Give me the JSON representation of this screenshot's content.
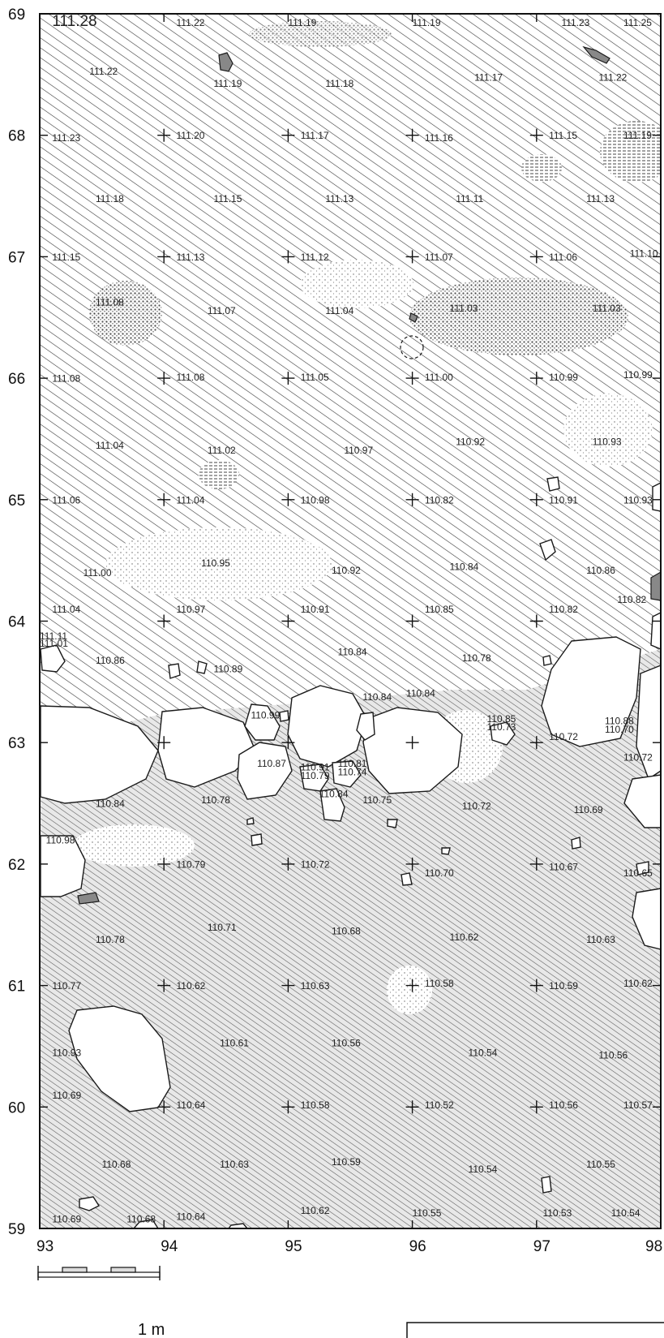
{
  "plan": {
    "x_axis": {
      "min": 93,
      "max": 98,
      "ticks": [
        "93",
        "94",
        "95",
        "96",
        "97",
        "98"
      ]
    },
    "y_axis": {
      "min": 59,
      "max": 69,
      "ticks": [
        "59",
        "60",
        "61",
        "62",
        "63",
        "64",
        "65",
        "66",
        "67",
        "68",
        "69"
      ]
    },
    "scale_bar_label": "1 m",
    "ink_color": "#1a1a1a",
    "fill_color": "#ffffff"
  },
  "elevations": [
    {
      "x": 93.1,
      "y": 68.9,
      "t": "111.28",
      "big": true
    },
    {
      "x": 94.1,
      "y": 68.9,
      "t": "111.22"
    },
    {
      "x": 95.0,
      "y": 68.9,
      "t": "111.19"
    },
    {
      "x": 96.0,
      "y": 68.9,
      "t": "111.19"
    },
    {
      "x": 97.2,
      "y": 68.9,
      "t": "111.23"
    },
    {
      "x": 97.7,
      "y": 68.9,
      "t": "111.25"
    },
    {
      "x": 93.4,
      "y": 68.5,
      "t": "111.22"
    },
    {
      "x": 94.4,
      "y": 68.4,
      "t": "111.19"
    },
    {
      "x": 95.3,
      "y": 68.4,
      "t": "111.18"
    },
    {
      "x": 96.5,
      "y": 68.45,
      "t": "111.17"
    },
    {
      "x": 97.5,
      "y": 68.45,
      "t": "111.22"
    },
    {
      "x": 93.1,
      "y": 67.95,
      "t": "111.23"
    },
    {
      "x": 94.1,
      "y": 67.97,
      "t": "111.20"
    },
    {
      "x": 95.1,
      "y": 67.97,
      "t": "111.17"
    },
    {
      "x": 96.1,
      "y": 67.95,
      "t": "111.16"
    },
    {
      "x": 97.1,
      "y": 67.97,
      "t": "111.15"
    },
    {
      "x": 97.7,
      "y": 67.97,
      "t": "111.19"
    },
    {
      "x": 93.45,
      "y": 67.45,
      "t": "111.18"
    },
    {
      "x": 94.4,
      "y": 67.45,
      "t": "111.15"
    },
    {
      "x": 95.3,
      "y": 67.45,
      "t": "111.13"
    },
    {
      "x": 96.35,
      "y": 67.45,
      "t": "111.11"
    },
    {
      "x": 97.4,
      "y": 67.45,
      "t": "111.13"
    },
    {
      "x": 93.1,
      "y": 66.97,
      "t": "111.15"
    },
    {
      "x": 94.1,
      "y": 66.97,
      "t": "111.13"
    },
    {
      "x": 95.1,
      "y": 66.97,
      "t": "111.12"
    },
    {
      "x": 96.1,
      "y": 66.97,
      "t": "111.07"
    },
    {
      "x": 97.1,
      "y": 66.97,
      "t": "111.06"
    },
    {
      "x": 97.75,
      "y": 67.0,
      "t": "111.10"
    },
    {
      "x": 93.45,
      "y": 66.6,
      "t": "111.08"
    },
    {
      "x": 94.35,
      "y": 66.53,
      "t": "111.07"
    },
    {
      "x": 95.3,
      "y": 66.53,
      "t": "111.04"
    },
    {
      "x": 96.3,
      "y": 66.55,
      "t": "111.03"
    },
    {
      "x": 97.45,
      "y": 66.55,
      "t": "111.03"
    },
    {
      "x": 93.1,
      "y": 65.97,
      "t": "111.08"
    },
    {
      "x": 94.1,
      "y": 65.98,
      "t": "111.08"
    },
    {
      "x": 95.1,
      "y": 65.98,
      "t": "111.05"
    },
    {
      "x": 96.1,
      "y": 65.98,
      "t": "111.00"
    },
    {
      "x": 97.1,
      "y": 65.98,
      "t": "110.99"
    },
    {
      "x": 97.7,
      "y": 66.0,
      "t": "110.99"
    },
    {
      "x": 93.45,
      "y": 65.42,
      "t": "111.04"
    },
    {
      "x": 94.35,
      "y": 65.38,
      "t": "111.02"
    },
    {
      "x": 95.45,
      "y": 65.38,
      "t": "110.97"
    },
    {
      "x": 96.35,
      "y": 65.45,
      "t": "110.92"
    },
    {
      "x": 97.45,
      "y": 65.45,
      "t": "110.93"
    },
    {
      "x": 93.1,
      "y": 64.97,
      "t": "111.06"
    },
    {
      "x": 94.1,
      "y": 64.97,
      "t": "111.04"
    },
    {
      "x": 95.1,
      "y": 64.97,
      "t": "110.98"
    },
    {
      "x": 96.1,
      "y": 64.97,
      "t": "110.82"
    },
    {
      "x": 97.1,
      "y": 64.97,
      "t": "110.91"
    },
    {
      "x": 97.7,
      "y": 64.97,
      "t": "110.93"
    },
    {
      "x": 93.35,
      "y": 64.37,
      "t": "111.00"
    },
    {
      "x": 94.3,
      "y": 64.45,
      "t": "110.95"
    },
    {
      "x": 95.35,
      "y": 64.39,
      "t": "110.92"
    },
    {
      "x": 96.3,
      "y": 64.42,
      "t": "110.84"
    },
    {
      "x": 97.4,
      "y": 64.39,
      "t": "110.86"
    },
    {
      "x": 93.1,
      "y": 64.07,
      "t": "111.04"
    },
    {
      "x": 94.1,
      "y": 64.07,
      "t": "110.97"
    },
    {
      "x": 95.1,
      "y": 64.07,
      "t": "110.91"
    },
    {
      "x": 96.1,
      "y": 64.07,
      "t": "110.85"
    },
    {
      "x": 97.1,
      "y": 64.07,
      "t": "110.82"
    },
    {
      "x": 97.65,
      "y": 64.15,
      "t": "110.82"
    },
    {
      "x": 93.45,
      "y": 63.65,
      "t": "110.86"
    },
    {
      "x": 94.4,
      "y": 63.58,
      "t": "110.89"
    },
    {
      "x": 95.4,
      "y": 63.72,
      "t": "110.84"
    },
    {
      "x": 96.4,
      "y": 63.67,
      "t": "110.78"
    },
    {
      "x": 93.45,
      "y": 62.47,
      "t": "110.84"
    },
    {
      "x": 94.3,
      "y": 62.5,
      "t": "110.78"
    },
    {
      "x": 95.6,
      "y": 62.5,
      "t": "110.75"
    },
    {
      "x": 96.4,
      "y": 62.45,
      "t": "110.72"
    },
    {
      "x": 97.3,
      "y": 62.42,
      "t": "110.69"
    },
    {
      "x": 97.1,
      "y": 63.02,
      "t": "110.72"
    },
    {
      "x": 97.7,
      "y": 62.85,
      "t": "110.72"
    },
    {
      "x": 94.1,
      "y": 61.97,
      "t": "110.79"
    },
    {
      "x": 95.1,
      "y": 61.97,
      "t": "110.72"
    },
    {
      "x": 96.1,
      "y": 61.9,
      "t": "110.70"
    },
    {
      "x": 97.1,
      "y": 61.95,
      "t": "110.67"
    },
    {
      "x": 97.7,
      "y": 61.9,
      "t": "110.65"
    },
    {
      "x": 93.45,
      "y": 61.35,
      "t": "110.78"
    },
    {
      "x": 94.35,
      "y": 61.45,
      "t": "110.71"
    },
    {
      "x": 95.35,
      "y": 61.42,
      "t": "110.68"
    },
    {
      "x": 96.3,
      "y": 61.37,
      "t": "110.62"
    },
    {
      "x": 97.4,
      "y": 61.35,
      "t": "110.63"
    },
    {
      "x": 93.1,
      "y": 60.97,
      "t": "110.77"
    },
    {
      "x": 94.1,
      "y": 60.97,
      "t": "110.62"
    },
    {
      "x": 95.1,
      "y": 60.97,
      "t": "110.63"
    },
    {
      "x": 96.1,
      "y": 60.99,
      "t": "110.58"
    },
    {
      "x": 97.1,
      "y": 60.97,
      "t": "110.59"
    },
    {
      "x": 97.7,
      "y": 60.99,
      "t": "110.62"
    },
    {
      "x": 93.1,
      "y": 60.42,
      "t": "110.93"
    },
    {
      "x": 94.45,
      "y": 60.5,
      "t": "110.61"
    },
    {
      "x": 95.35,
      "y": 60.5,
      "t": "110.56"
    },
    {
      "x": 96.45,
      "y": 60.42,
      "t": "110.54"
    },
    {
      "x": 97.5,
      "y": 60.4,
      "t": "110.56"
    },
    {
      "x": 93.1,
      "y": 60.07,
      "t": "110.69"
    },
    {
      "x": 94.1,
      "y": 59.99,
      "t": "110.64"
    },
    {
      "x": 95.1,
      "y": 59.99,
      "t": "110.58"
    },
    {
      "x": 96.1,
      "y": 59.99,
      "t": "110.52"
    },
    {
      "x": 97.1,
      "y": 59.99,
      "t": "110.56"
    },
    {
      "x": 97.7,
      "y": 59.99,
      "t": "110.57"
    },
    {
      "x": 93.5,
      "y": 59.5,
      "t": "110.68"
    },
    {
      "x": 94.45,
      "y": 59.5,
      "t": "110.63"
    },
    {
      "x": 95.35,
      "y": 59.52,
      "t": "110.59"
    },
    {
      "x": 96.45,
      "y": 59.46,
      "t": "110.54"
    },
    {
      "x": 97.4,
      "y": 59.5,
      "t": "110.55"
    },
    {
      "x": 93.1,
      "y": 59.05,
      "t": "110.69"
    },
    {
      "x": 93.7,
      "y": 59.05,
      "t": "110.68"
    },
    {
      "x": 94.1,
      "y": 59.07,
      "t": "110.64"
    },
    {
      "x": 95.1,
      "y": 59.12,
      "t": "110.62"
    },
    {
      "x": 96.0,
      "y": 59.1,
      "t": "110.55"
    },
    {
      "x": 97.05,
      "y": 59.1,
      "t": "110.53"
    },
    {
      "x": 97.6,
      "y": 59.1,
      "t": "110.54"
    },
    {
      "x": 93.05,
      "y": 62.17,
      "t": "110.98"
    },
    {
      "x": 94.7,
      "y": 63.2,
      "t": "110.99"
    },
    {
      "x": 94.75,
      "y": 62.8,
      "t": "110.87"
    },
    {
      "x": 95.1,
      "y": 62.77,
      "t": "110.91"
    },
    {
      "x": 95.1,
      "y": 62.7,
      "t": "110.79"
    },
    {
      "x": 95.4,
      "y": 62.8,
      "t": "110.81"
    },
    {
      "x": 95.4,
      "y": 62.73,
      "t": "110.74"
    },
    {
      "x": 95.25,
      "y": 62.55,
      "t": "110.84"
    },
    {
      "x": 95.6,
      "y": 63.35,
      "t": "110.84"
    },
    {
      "x": 95.95,
      "y": 63.38,
      "t": "110.84"
    },
    {
      "x": 96.6,
      "y": 63.17,
      "t": "110.85"
    },
    {
      "x": 96.6,
      "y": 63.1,
      "t": "110.73"
    },
    {
      "x": 97.55,
      "y": 63.15,
      "t": "110.88"
    },
    {
      "x": 97.55,
      "y": 63.08,
      "t": "110.70"
    },
    {
      "x": 93.0,
      "y": 63.85,
      "t": "111.11"
    },
    {
      "x": 93.0,
      "y": 63.79,
      "t": "111.01"
    }
  ]
}
